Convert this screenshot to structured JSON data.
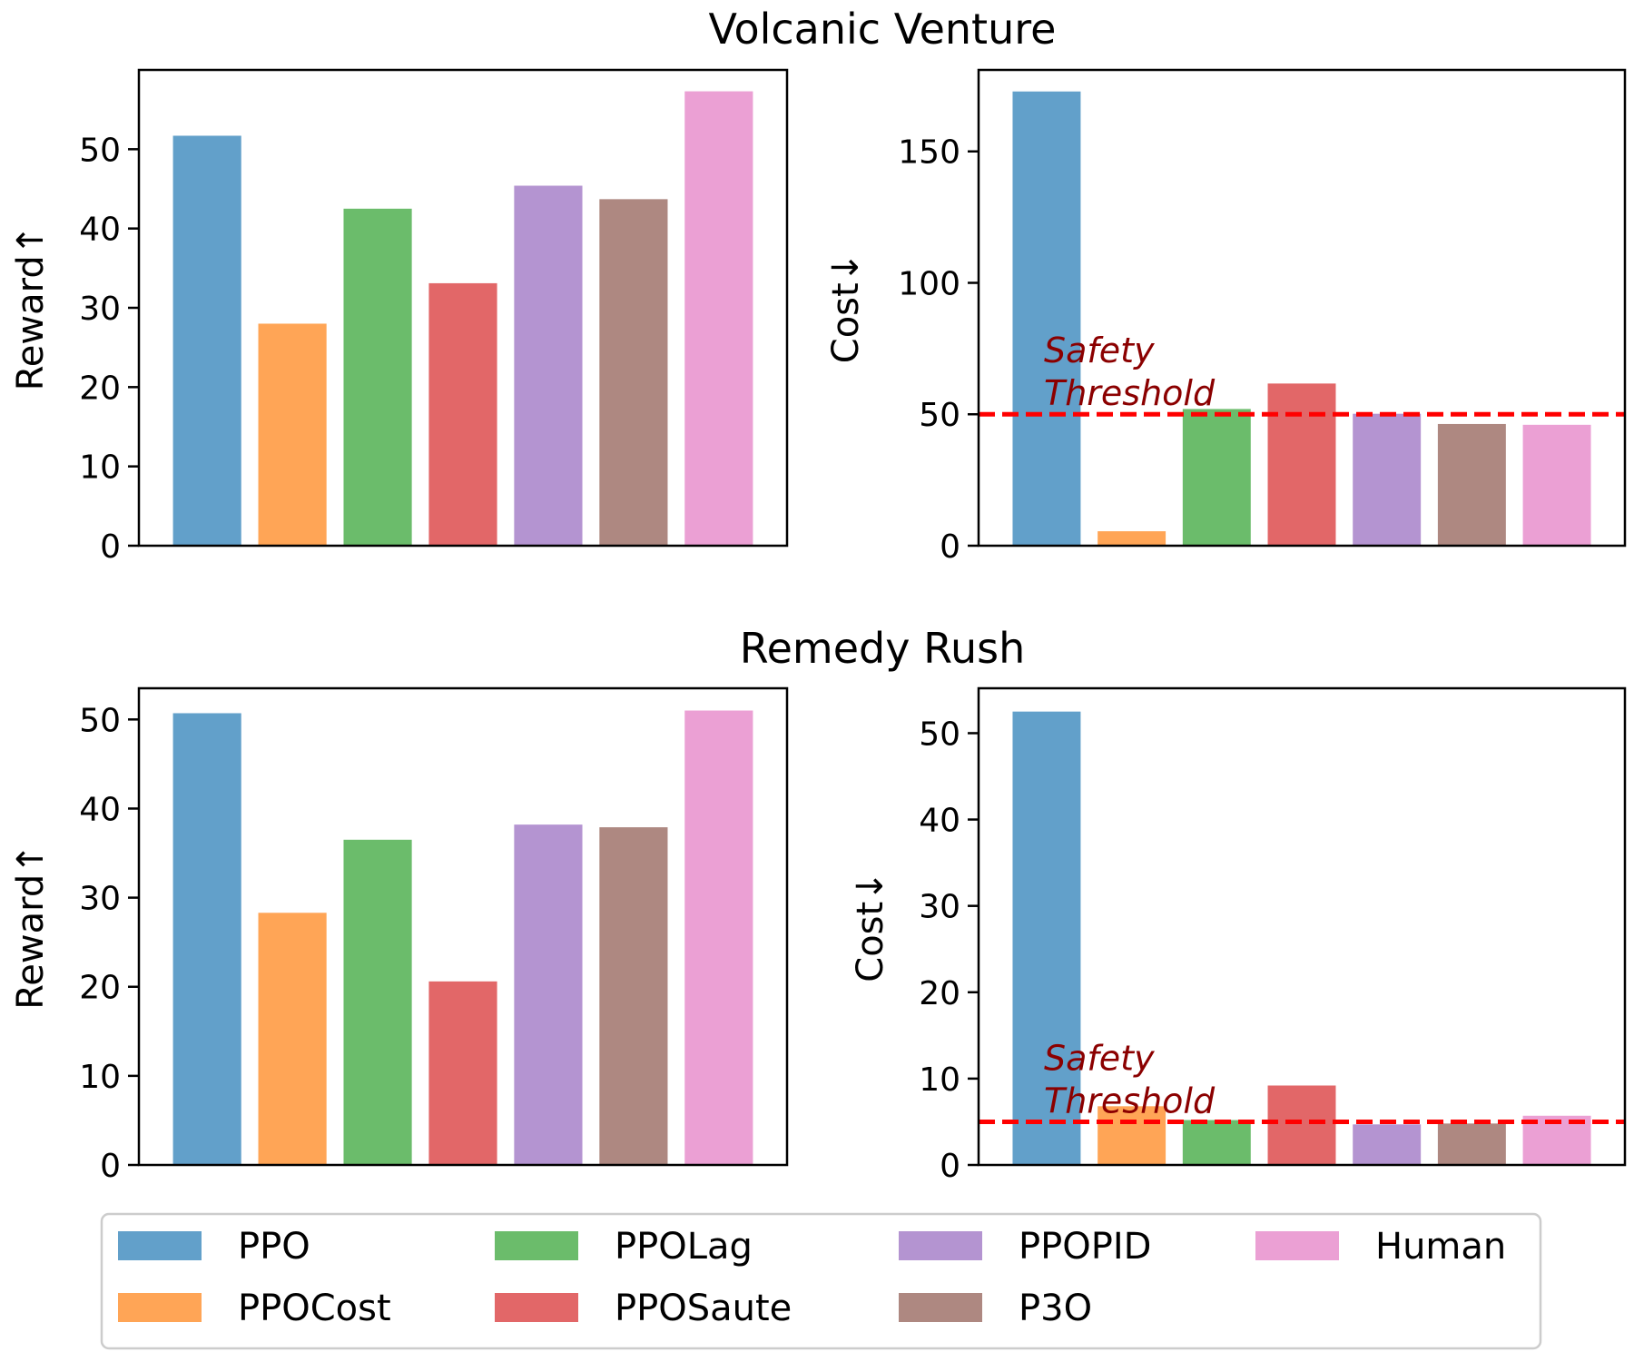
{
  "chart_data": [
    {
      "type": "bar",
      "group_title": "Volcanic Venture",
      "ylabel": "Reward↑",
      "categories": [
        "PPO",
        "PPOCost",
        "PPOLag",
        "PPOSaute",
        "PPOPID",
        "P3O",
        "Human"
      ],
      "values": [
        51.7,
        28.0,
        42.5,
        33.1,
        45.4,
        43.7,
        57.3
      ],
      "ylim": [
        0,
        60
      ],
      "yticks": [
        0,
        10,
        20,
        30,
        40,
        50
      ]
    },
    {
      "type": "bar",
      "ylabel": "Cost↓",
      "categories": [
        "PPO",
        "PPOCost",
        "PPOLag",
        "PPOSaute",
        "PPOPID",
        "P3O",
        "Human"
      ],
      "values": [
        172.8,
        5.5,
        52.0,
        61.7,
        50.2,
        46.3,
        46.0
      ],
      "ylim": [
        0,
        181
      ],
      "yticks": [
        0,
        50,
        100,
        150
      ],
      "threshold": {
        "value": 50,
        "label_line1": "Safety",
        "label_line2": "Threshold",
        "color": "#ff0000"
      }
    },
    {
      "type": "bar",
      "group_title": "Remedy Rush",
      "ylabel": "Reward↑",
      "categories": [
        "PPO",
        "PPOCost",
        "PPOLag",
        "PPOSaute",
        "PPOPID",
        "P3O",
        "Human"
      ],
      "values": [
        50.7,
        28.3,
        36.5,
        20.6,
        38.2,
        37.9,
        51.0
      ],
      "ylim": [
        0,
        53.5
      ],
      "yticks": [
        0,
        10,
        20,
        30,
        40,
        50
      ]
    },
    {
      "type": "bar",
      "ylabel": "Cost↓",
      "categories": [
        "PPO",
        "PPOCost",
        "PPOLag",
        "PPOSaute",
        "PPOPID",
        "P3O",
        "Human"
      ],
      "values": [
        52.5,
        6.8,
        5.2,
        9.2,
        4.7,
        4.8,
        5.7
      ],
      "ylim": [
        0,
        55.2
      ],
      "yticks": [
        0,
        10,
        20,
        30,
        40,
        50
      ],
      "threshold": {
        "value": 5,
        "label_line1": "Safety",
        "label_line2": "Threshold",
        "color": "#ff0000"
      }
    }
  ],
  "legend": {
    "entries": [
      {
        "label": "PPO",
        "color": "#1f77b4"
      },
      {
        "label": "PPOCost",
        "color": "#ff7f0e"
      },
      {
        "label": "PPOLag",
        "color": "#2ca02c"
      },
      {
        "label": "PPOSaute",
        "color": "#d62728"
      },
      {
        "label": "PPOPID",
        "color": "#9467bd"
      },
      {
        "label": "P3O",
        "color": "#8c564b"
      },
      {
        "label": "Human",
        "color": "#e377c2"
      }
    ],
    "placement": "bottom"
  },
  "bar_opacity": 0.7
}
